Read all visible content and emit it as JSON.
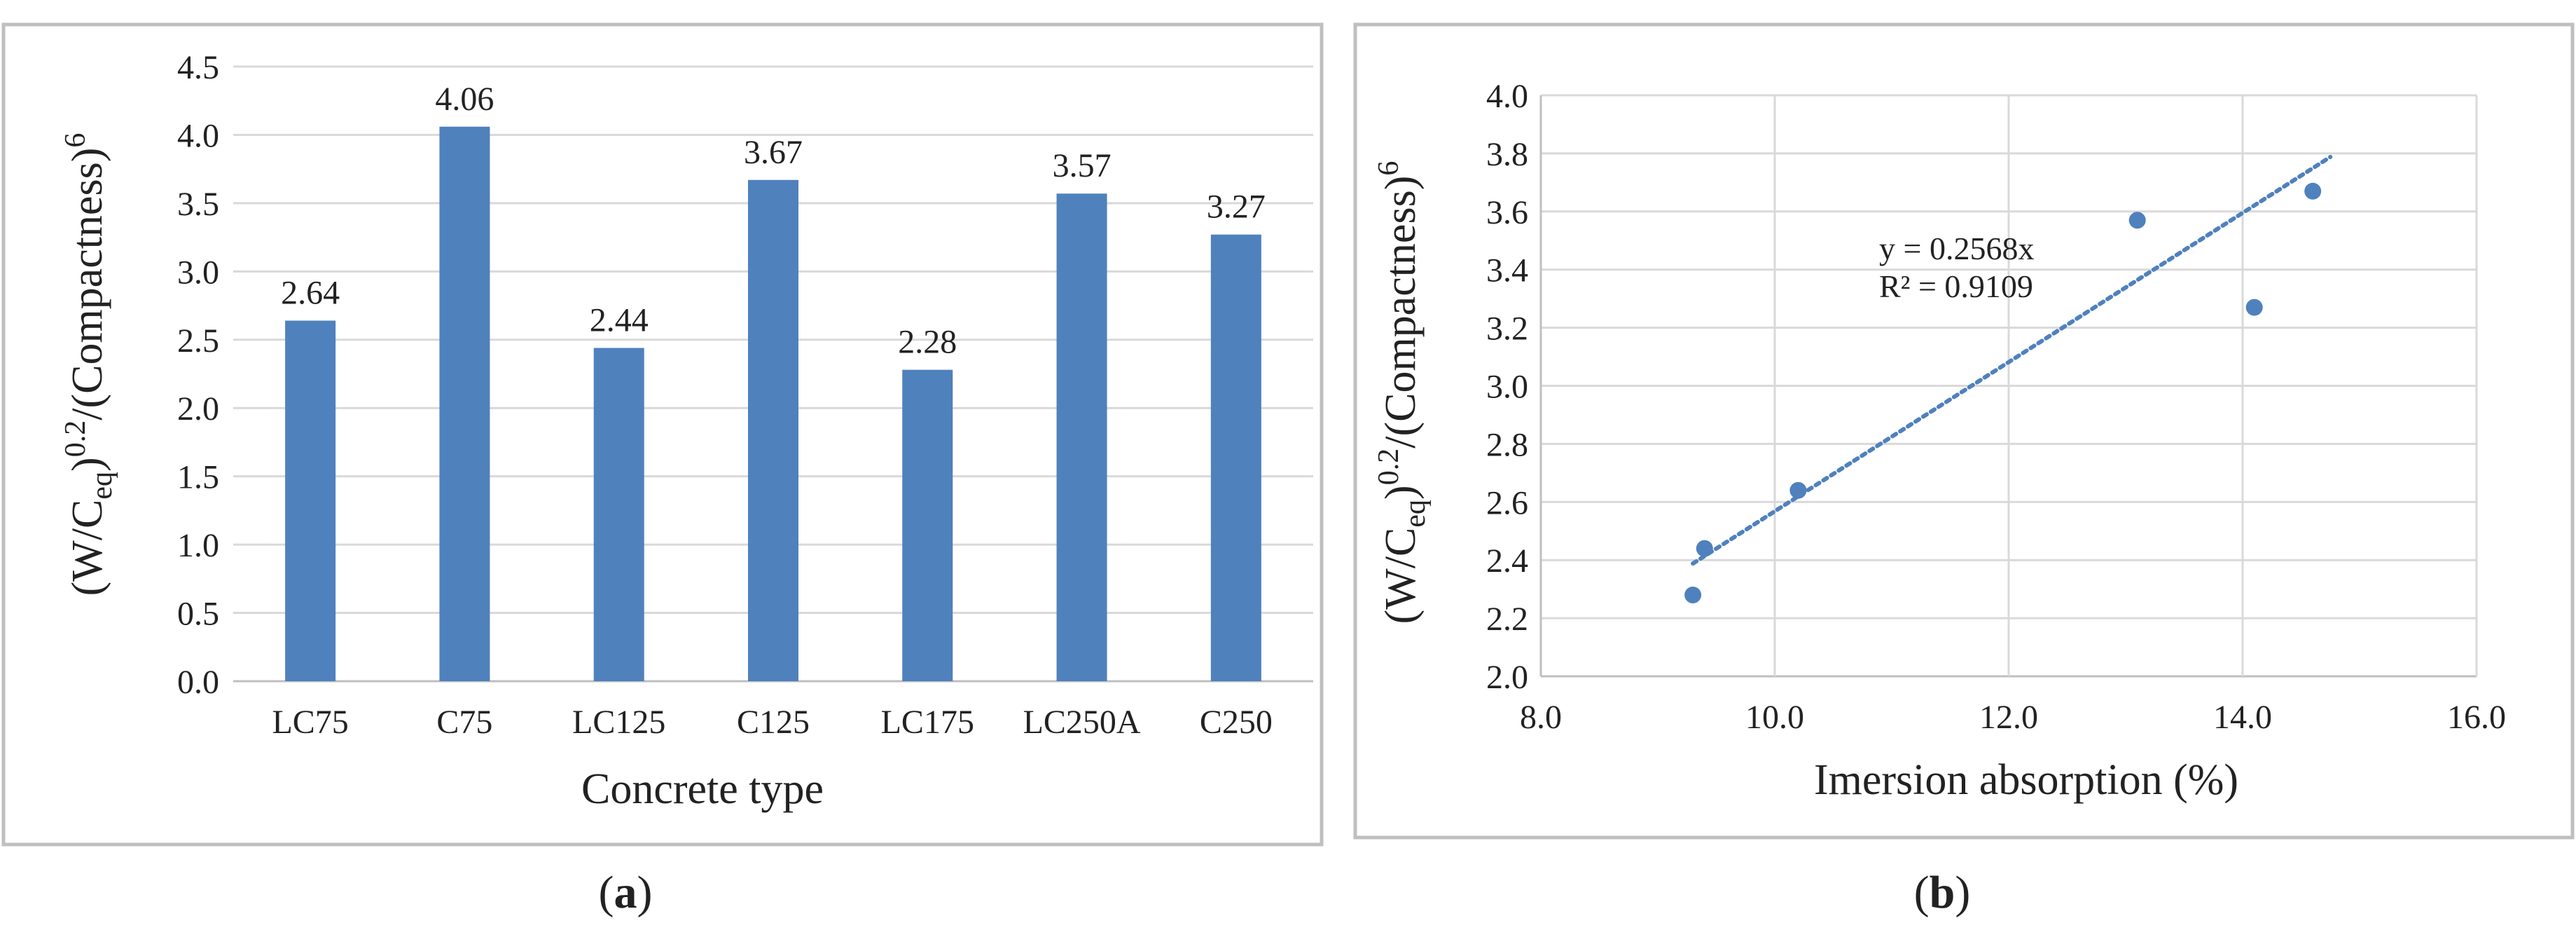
{
  "colors": {
    "bar": "#4f81bd",
    "point": "#4f81bd",
    "trendline": "#4f81bd",
    "grid": "#d9d9d9",
    "frame": "#bfbfbf",
    "axis": "#bfbfbf",
    "text": "#222222"
  },
  "panels": {
    "a": {
      "label_letter": "a"
    },
    "b": {
      "label_letter": "b"
    }
  },
  "chart_data": [
    {
      "panel": "a",
      "type": "bar",
      "categories": [
        "LC75",
        "C75",
        "LC125",
        "C125",
        "LC175",
        "LC250A",
        "C250"
      ],
      "values": [
        2.64,
        4.06,
        2.44,
        3.67,
        2.28,
        3.57,
        3.27
      ],
      "data_labels": [
        "2.64",
        "4.06",
        "2.44",
        "3.67",
        "2.28",
        "3.57",
        "3.27"
      ],
      "xlabel": "Concrete type",
      "ylabel": {
        "p1": "(W/C",
        "sub": "eq",
        "p2": ")",
        "sup1": "0.2",
        "p3": "/(Compactness)",
        "sup2": "6"
      },
      "ylim": [
        0,
        4.5
      ],
      "yticks": [
        "0.0",
        "0.5",
        "1.0",
        "1.5",
        "2.0",
        "2.5",
        "3.0",
        "3.5",
        "4.0",
        "4.5"
      ],
      "grid": true
    },
    {
      "panel": "b",
      "type": "scatter",
      "points": [
        {
          "x": 9.3,
          "y": 2.28
        },
        {
          "x": 9.4,
          "y": 2.44
        },
        {
          "x": 10.2,
          "y": 2.64
        },
        {
          "x": 13.1,
          "y": 3.57
        },
        {
          "x": 14.1,
          "y": 3.27
        },
        {
          "x": 14.6,
          "y": 3.67
        }
      ],
      "trendline": {
        "slope": 0.2568,
        "x_start": 9.3,
        "x_end": 14.75,
        "style": "dotted"
      },
      "equation": "y = 0.2568x",
      "r_squared": "R² = 0.9109",
      "xlabel": "Imersion absorption (%)",
      "ylabel": {
        "p1": "(W/C",
        "sub": "eq",
        "p2": ")",
        "sup1": "0.2",
        "p3": "/(Compactness)",
        "sup2": "6"
      },
      "xlim": [
        8,
        16
      ],
      "ylim": [
        2,
        4
      ],
      "xticks": [
        "8.0",
        "10.0",
        "12.0",
        "14.0",
        "16.0"
      ],
      "yticks": [
        "2.0",
        "2.2",
        "2.4",
        "2.6",
        "2.8",
        "3.0",
        "3.2",
        "3.4",
        "3.6",
        "3.8",
        "4.0"
      ],
      "grid": true
    }
  ]
}
